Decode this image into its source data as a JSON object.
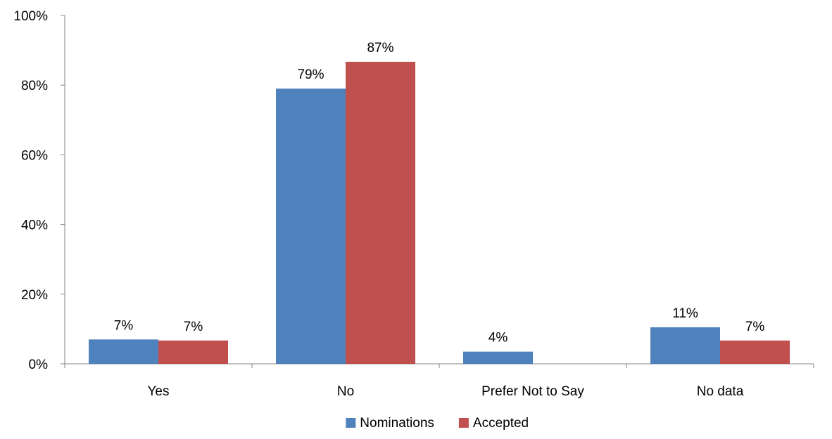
{
  "chart_data": {
    "type": "bar",
    "categories": [
      "Yes",
      "No",
      "Prefer Not to Say",
      "No data"
    ],
    "series": [
      {
        "name": "Nominations",
        "color": "#4F81BD",
        "values": [
          7,
          79,
          3.5,
          10.5
        ],
        "labels": [
          "7%",
          "79%",
          "4%",
          "11%"
        ]
      },
      {
        "name": "Accepted",
        "color": "#C0504D",
        "values": [
          6.7,
          86.7,
          null,
          6.7
        ],
        "labels": [
          "7%",
          "87%",
          "",
          "7%"
        ]
      }
    ],
    "ylim": [
      0,
      100
    ],
    "y_ticks": [
      0,
      20,
      40,
      60,
      80,
      100
    ],
    "y_tick_labels": [
      "0%",
      "20%",
      "40%",
      "60%",
      "80%",
      "100%"
    ],
    "title": "",
    "xlabel": "",
    "ylabel": "",
    "grid": false,
    "legend_position": "bottom"
  }
}
